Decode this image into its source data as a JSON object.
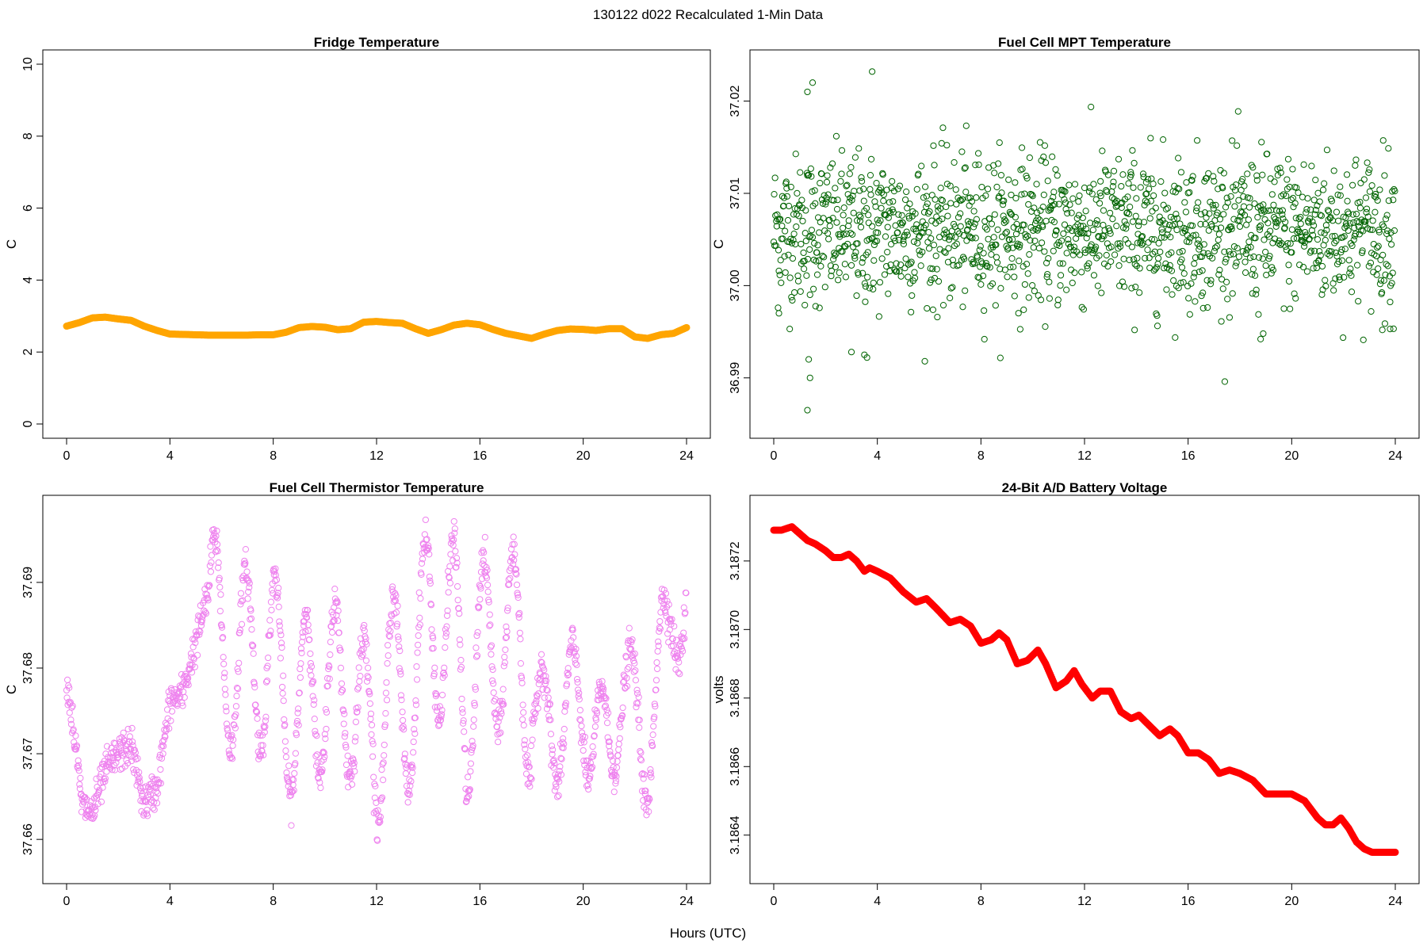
{
  "figure": {
    "title": "130122   d022   Recalculated 1-Min Data",
    "xlabel": "Hours (UTC)"
  },
  "chart_data": [
    {
      "type": "line",
      "title": "Fridge Temperature",
      "xlabel": "",
      "ylabel": "C",
      "xlim": [
        0,
        24
      ],
      "ylim": [
        0,
        10
      ],
      "xticks": [
        "0",
        "4",
        "8",
        "12",
        "16",
        "20",
        "24"
      ],
      "yticks": [
        "0",
        "2",
        "4",
        "6",
        "8",
        "10"
      ],
      "grid": false,
      "color": "#FFA500",
      "marker": "filled",
      "series": [
        {
          "x": [
            0,
            0.5,
            1,
            1.5,
            2,
            2.5,
            3,
            3.5,
            4,
            4.5,
            5,
            5.5,
            6,
            6.5,
            7,
            7.5,
            8,
            8.5,
            9,
            9.5,
            10,
            10.5,
            11,
            11.5,
            12,
            12.5,
            13,
            13.5,
            14,
            14.5,
            15,
            15.5,
            16,
            16.5,
            17,
            17.5,
            18,
            18.5,
            19,
            19.5,
            20,
            20.5,
            21,
            21.5,
            22,
            22.5,
            23,
            23.5,
            24
          ],
          "y": [
            2.72,
            2.82,
            2.95,
            2.97,
            2.92,
            2.88,
            2.72,
            2.6,
            2.5,
            2.49,
            2.48,
            2.47,
            2.47,
            2.47,
            2.47,
            2.48,
            2.48,
            2.55,
            2.68,
            2.71,
            2.69,
            2.62,
            2.65,
            2.83,
            2.85,
            2.82,
            2.8,
            2.65,
            2.52,
            2.62,
            2.75,
            2.8,
            2.76,
            2.63,
            2.52,
            2.45,
            2.38,
            2.5,
            2.6,
            2.64,
            2.63,
            2.6,
            2.65,
            2.65,
            2.42,
            2.38,
            2.48,
            2.52,
            2.68
          ]
        }
      ]
    },
    {
      "type": "scatter",
      "title": "Fuel Cell MPT Temperature",
      "xlabel": "",
      "ylabel": "C",
      "xlim": [
        0,
        24
      ],
      "ylim": [
        36.985,
        37.024
      ],
      "xticks": [
        "0",
        "4",
        "8",
        "12",
        "16",
        "20",
        "24"
      ],
      "yticks": [
        "36.99",
        "37.00",
        "37.01",
        "37.02"
      ],
      "grid": false,
      "color": "#006400",
      "marker": "open-circle",
      "noise_center": 37.006,
      "noise_spread": 0.0048,
      "points_per_hour": 60,
      "outliers": [
        {
          "x": 1.3,
          "y": 36.9865
        },
        {
          "x": 1.4,
          "y": 36.99
        },
        {
          "x": 1.35,
          "y": 36.992
        },
        {
          "x": 3.8,
          "y": 37.0232
        },
        {
          "x": 1.5,
          "y": 37.022
        },
        {
          "x": 1.3,
          "y": 37.021
        },
        {
          "x": 3.5,
          "y": 36.9925
        },
        {
          "x": 3.6,
          "y": 36.9922
        },
        {
          "x": 18.8,
          "y": 36.9942
        },
        {
          "x": 18.9,
          "y": 36.9948
        },
        {
          "x": 23.5,
          "y": 36.9952
        },
        {
          "x": 23.8,
          "y": 36.9953
        },
        {
          "x": 0.2,
          "y": 36.997
        },
        {
          "x": 3.0,
          "y": 36.9928
        }
      ]
    },
    {
      "type": "scatter",
      "title": "Fuel Cell Thermistor Temperature",
      "xlabel": "",
      "ylabel": "C",
      "xlim": [
        0,
        24
      ],
      "ylim": [
        37.6565,
        37.6985
      ],
      "xticks": [
        "0",
        "4",
        "8",
        "12",
        "16",
        "20",
        "24"
      ],
      "yticks": [
        "37.66",
        "37.67",
        "37.68",
        "37.69"
      ],
      "grid": false,
      "color": "#EE82EE",
      "marker": "open-circle",
      "points_per_hour": 60,
      "trend": {
        "x": [
          0,
          0.3,
          0.6,
          1,
          1.5,
          2,
          2.5,
          3,
          3.5,
          4,
          4.5,
          5,
          5.5,
          6,
          7,
          8,
          8.5,
          9,
          9.5,
          10,
          10.5,
          11,
          11.5,
          12,
          12.5,
          13,
          13.5,
          14,
          14.5,
          15,
          15.5,
          16,
          16.5,
          17,
          17.5,
          18,
          18.5,
          19,
          19.5,
          20,
          20.5,
          21,
          21.5,
          22,
          22.5,
          23,
          23.5,
          24
        ],
        "y": [
          37.679,
          37.672,
          37.664,
          37.663,
          37.668,
          37.67,
          37.671,
          37.664,
          37.666,
          37.676,
          37.677,
          37.683,
          37.689,
          37.681,
          37.681,
          37.681,
          37.676,
          37.674,
          37.678,
          37.677,
          37.677,
          37.678,
          37.673,
          37.671,
          37.68,
          37.675,
          37.678,
          37.687,
          37.684,
          37.685,
          37.675,
          37.682,
          37.683,
          37.683,
          37.683,
          37.676,
          37.673,
          37.673,
          37.676,
          37.675,
          37.672,
          37.67,
          37.679,
          37.674,
          37.67,
          37.68,
          37.689,
          37.684
        ]
      },
      "oscillation": {
        "amplitude": 0.0105,
        "period_hours": 1.15,
        "start_hour": 5.5
      }
    },
    {
      "type": "line",
      "title": "24-Bit A/D Battery Voltage",
      "xlabel": "",
      "ylabel": "volts",
      "xlim": [
        0,
        24
      ],
      "ylim": [
        3.1863,
        3.18735
      ],
      "xticks": [
        "0",
        "4",
        "8",
        "12",
        "16",
        "20",
        "24"
      ],
      "yticks": [
        "3.1864",
        "3.1866",
        "3.1868",
        "3.1870",
        "3.1872"
      ],
      "grid": false,
      "color": "#FF0000",
      "marker": "filled",
      "series": [
        {
          "x": [
            0,
            0.3,
            0.7,
            1.0,
            1.3,
            1.6,
            2.0,
            2.3,
            2.6,
            2.9,
            3.2,
            3.5,
            3.7,
            4.0,
            4.5,
            5.0,
            5.5,
            5.9,
            6.3,
            6.8,
            7.2,
            7.6,
            8.0,
            8.4,
            8.7,
            9.0,
            9.4,
            9.8,
            10.2,
            10.5,
            10.9,
            11.3,
            11.6,
            11.9,
            12.3,
            12.6,
            13.0,
            13.4,
            13.8,
            14.1,
            14.5,
            14.9,
            15.3,
            15.6,
            16.0,
            16.4,
            16.8,
            17.2,
            17.6,
            18.0,
            18.5,
            19.0,
            19.5,
            20.0,
            20.5,
            21.0,
            21.3,
            21.6,
            21.9,
            22.2,
            22.5,
            22.8,
            23.1,
            23.4,
            23.7,
            24.0
          ],
          "y": [
            3.18729,
            3.18729,
            3.1873,
            3.18728,
            3.18726,
            3.18725,
            3.18723,
            3.18721,
            3.18721,
            3.18722,
            3.1872,
            3.18717,
            3.18718,
            3.18717,
            3.18715,
            3.18711,
            3.18708,
            3.18709,
            3.18706,
            3.18702,
            3.18703,
            3.18701,
            3.18696,
            3.18697,
            3.18699,
            3.18697,
            3.1869,
            3.18691,
            3.18694,
            3.1869,
            3.18683,
            3.18685,
            3.18688,
            3.18684,
            3.1868,
            3.18682,
            3.18682,
            3.18676,
            3.18674,
            3.18675,
            3.18672,
            3.18669,
            3.18671,
            3.18669,
            3.18664,
            3.18664,
            3.18662,
            3.18658,
            3.18659,
            3.18658,
            3.18656,
            3.18652,
            3.18652,
            3.18652,
            3.1865,
            3.18645,
            3.18643,
            3.18643,
            3.18645,
            3.18642,
            3.18638,
            3.18636,
            3.18635,
            3.18635,
            3.18635,
            3.18635
          ]
        }
      ]
    }
  ]
}
